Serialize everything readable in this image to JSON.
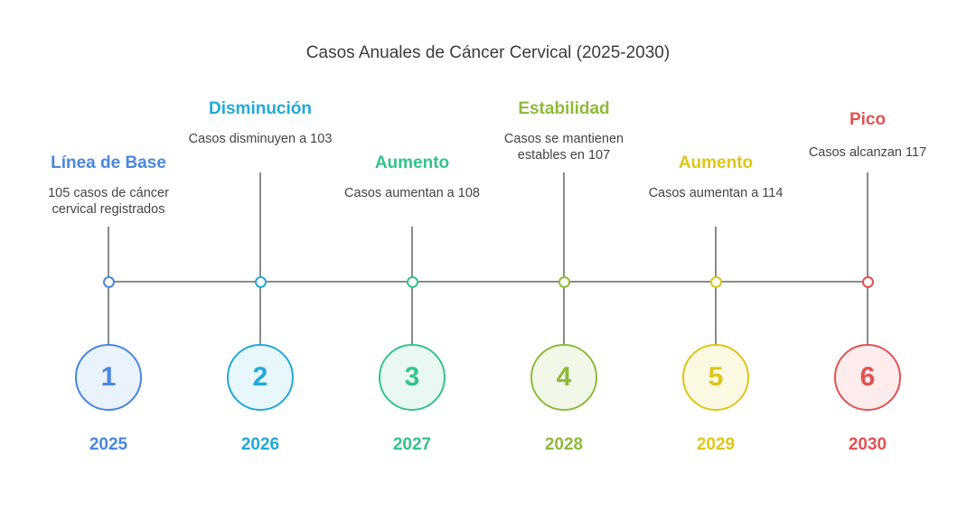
{
  "title": "Casos Anuales de Cáncer Cervical (2025-2030)",
  "events": [
    {
      "number": "1",
      "year": "2025",
      "heading": "Línea de Base",
      "description": "105 casos de cáncer cervical registrados",
      "color": "#4a86e0",
      "fill": "#eaf2fc"
    },
    {
      "number": "2",
      "year": "2026",
      "heading": "Disminución",
      "description": "Casos disminuyen a 103",
      "color": "#22a9d6",
      "fill": "#e8f7fc"
    },
    {
      "number": "3",
      "year": "2027",
      "heading": "Aumento",
      "description": "Casos aumentan a 108",
      "color": "#34c38b",
      "fill": "#e9f8f1"
    },
    {
      "number": "4",
      "year": "2028",
      "heading": "Estabilidad",
      "description": "Casos se mantienen estables en 107",
      "color": "#8fba3b",
      "fill": "#f2f8e7"
    },
    {
      "number": "5",
      "year": "2029",
      "heading": "Aumento",
      "description": "Casos aumentan a 114",
      "color": "#dcc619",
      "fill": "#fcf9e2"
    },
    {
      "number": "6",
      "year": "2030",
      "heading": "Pico",
      "description": "Casos alcanzan 117",
      "color": "#e05252",
      "fill": "#fcecec"
    }
  ]
}
